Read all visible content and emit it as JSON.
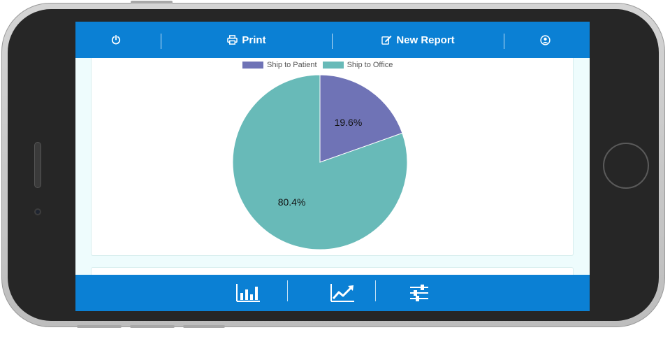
{
  "toolbar": {
    "print_label": "Print",
    "new_report_label": "New Report"
  },
  "icons": {
    "power": "power-icon",
    "print": "print-icon",
    "new_report": "edit-icon",
    "user": "user-circle-icon",
    "bar_chart": "bar-chart-icon",
    "line_chart": "line-chart-icon",
    "settings": "sliders-icon"
  },
  "colors": {
    "bar": "#0b80d4",
    "ship_to_patient": "#6f73b6",
    "ship_to_office": "#68bab8"
  },
  "chart_data": {
    "type": "pie",
    "legend_position": "top",
    "slices": [
      {
        "name": "Ship to Patient",
        "value": 19.6,
        "label": "19.6%",
        "color": "#6f73b6"
      },
      {
        "name": "Ship to Office",
        "value": 80.4,
        "label": "80.4%",
        "color": "#68bab8"
      }
    ]
  }
}
